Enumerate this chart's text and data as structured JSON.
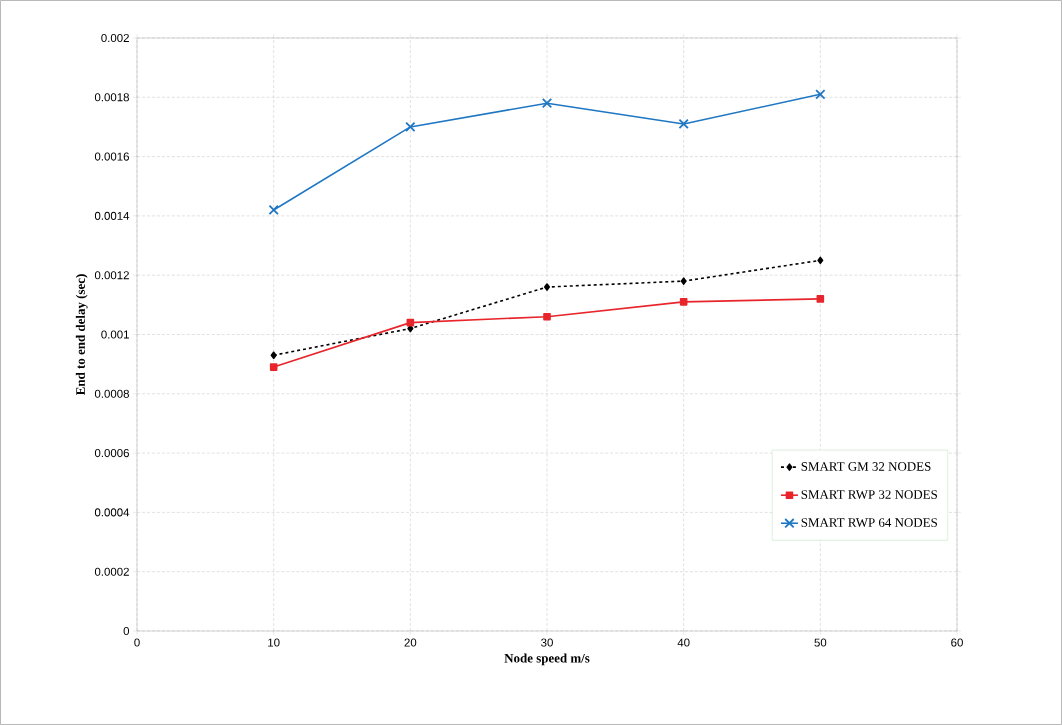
{
  "chart_data": {
    "type": "line",
    "xlabel": "Node speed m/s",
    "ylabel": "End to end delay (sec)",
    "x": [
      10,
      20,
      30,
      40,
      50
    ],
    "series": [
      {
        "name": "SMART GM 32 NODES",
        "color": "#000000",
        "marker": "diamond",
        "line_style": "dashed",
        "values": [
          0.00093,
          0.00102,
          0.00116,
          0.00118,
          0.00125
        ]
      },
      {
        "name": "SMART RWP 32 NODES",
        "color": "#e8252b",
        "marker": "square",
        "line_style": "solid",
        "values": [
          0.00089,
          0.00104,
          0.00106,
          0.00111,
          0.00112
        ]
      },
      {
        "name": "SMART RWP 64 NODES",
        "color": "#1f77c4",
        "marker": "cross",
        "line_style": "solid",
        "values": [
          0.00142,
          0.0017,
          0.00178,
          0.00171,
          0.00181
        ]
      }
    ],
    "xlim": [
      0,
      60
    ],
    "xticks": [
      0,
      10,
      20,
      30,
      40,
      50,
      60
    ],
    "ylim": [
      0,
      0.002
    ],
    "yticks": [
      0,
      0.0002,
      0.0004,
      0.0006,
      0.0008,
      0.001,
      0.0012,
      0.0014,
      0.0016,
      0.0018,
      0.002
    ],
    "grid": true,
    "legend": "bottom right"
  }
}
